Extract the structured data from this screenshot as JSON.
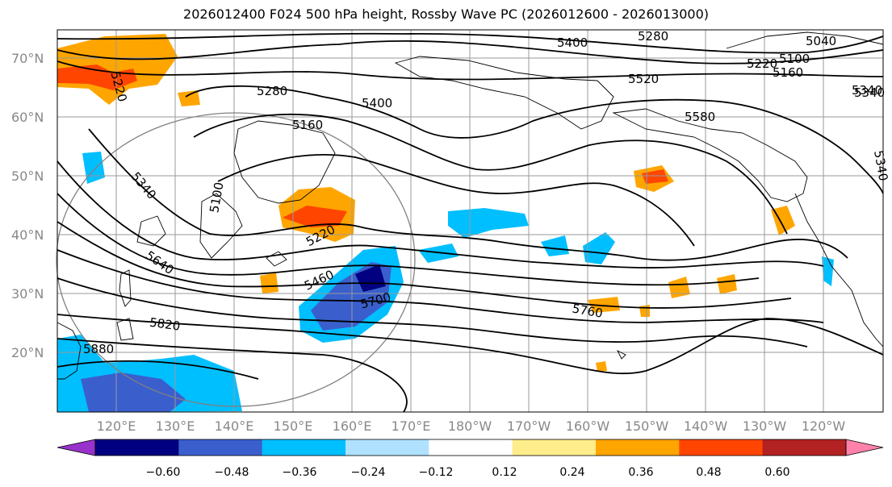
{
  "title": "2026012400 F024 500 hPa height, Rossby Wave PC (2026012600 - 2026013000)",
  "lat_labels": [
    "70°N",
    "60°N",
    "50°N",
    "40°N",
    "30°N",
    "20°N"
  ],
  "lon_labels": [
    "120°E",
    "130°E",
    "140°E",
    "150°E",
    "160°E",
    "170°E",
    "180°W",
    "170°W",
    "160°W",
    "150°W",
    "140°W",
    "130°W",
    "120°W"
  ],
  "colorbar": {
    "ticks": [
      "−0.60",
      "−0.48",
      "−0.36",
      "−0.24",
      "−0.12",
      "0.12",
      "0.24",
      "0.36",
      "0.48",
      "0.60"
    ],
    "colors": [
      "#9932cc",
      "#000080",
      "#3a5fcd",
      "#00bfff",
      "#b0e2ff",
      "#ffffff",
      "#ffec8b",
      "#ffa500",
      "#ff4500",
      "#b22222",
      "#ff82ab"
    ]
  },
  "contour_labels": [
    "5040",
    "5100",
    "5160",
    "5220",
    "5280",
    "5340",
    "5400",
    "5520",
    "5580",
    "5280",
    "5400",
    "5160",
    "5100",
    "5220",
    "5340",
    "5340",
    "5640",
    "5460",
    "5700",
    "5820",
    "5880",
    "5760",
    "5220",
    "5340"
  ]
}
